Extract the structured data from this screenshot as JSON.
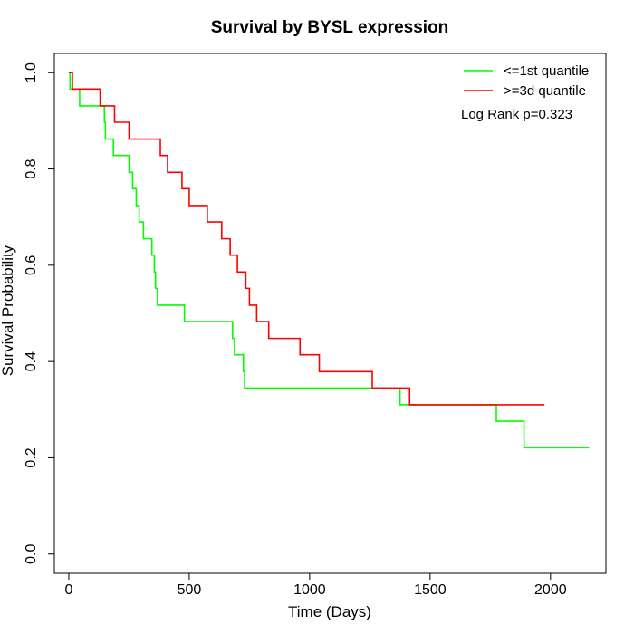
{
  "chart_data": {
    "type": "line",
    "title": "Survival by BYSL expression",
    "xlabel": "Time (Days)",
    "ylabel": "Survival Probability",
    "xlim": [
      -60,
      2230
    ],
    "ylim": [
      -0.04,
      1.04
    ],
    "x_ticks": [
      0,
      500,
      1000,
      1500,
      2000
    ],
    "y_ticks": [
      0.0,
      0.2,
      0.4,
      0.6,
      0.8,
      1.0
    ],
    "x_tick_labels": [
      "0",
      "500",
      "1000",
      "1500",
      "2000"
    ],
    "y_tick_labels": [
      "0.0",
      "0.2",
      "0.4",
      "0.6",
      "0.8",
      "1.0"
    ],
    "grid": false,
    "legend_position": "top-right",
    "annotation": "Log Rank p=0.323",
    "series": [
      {
        "name": "<=1st quantile",
        "color": "#00ff00",
        "step_times": [
          0,
          5,
          45,
          148,
          152,
          185,
          250,
          265,
          280,
          292,
          310,
          345,
          355,
          360,
          368,
          390,
          480,
          680,
          688,
          710,
          725,
          730,
          735,
          1375,
          1775,
          1890,
          2160
        ],
        "step_values": [
          1.0,
          0.966,
          0.931,
          0.897,
          0.862,
          0.828,
          0.793,
          0.759,
          0.724,
          0.69,
          0.655,
          0.621,
          0.586,
          0.552,
          0.517,
          0.517,
          0.483,
          0.448,
          0.414,
          0.414,
          0.379,
          0.345,
          0.345,
          0.31,
          0.276,
          0.221,
          0.221
        ]
      },
      {
        "name": ">=3d quantile",
        "color": "#ff0000",
        "step_times": [
          0,
          15,
          130,
          190,
          250,
          380,
          410,
          470,
          500,
          575,
          635,
          670,
          700,
          735,
          750,
          780,
          830,
          960,
          1040,
          1260,
          1415,
          1975
        ],
        "step_values": [
          1.0,
          0.966,
          0.931,
          0.897,
          0.862,
          0.828,
          0.793,
          0.759,
          0.724,
          0.69,
          0.655,
          0.621,
          0.586,
          0.552,
          0.517,
          0.483,
          0.448,
          0.414,
          0.379,
          0.345,
          0.31,
          0.31
        ]
      }
    ]
  }
}
